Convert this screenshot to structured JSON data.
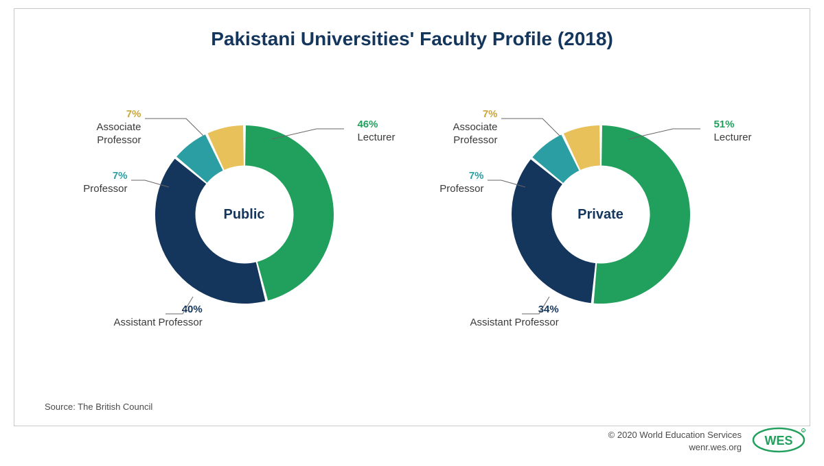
{
  "title": "Pakistani Universities' Faculty Profile (2018)",
  "title_color": "#14365c",
  "title_fontsize": 28,
  "background_color": "#ffffff",
  "divider_color": "#c9c9c9",
  "charts": [
    {
      "center_label": "Public",
      "type": "donut",
      "inner_radius_pct": 55,
      "gap_color": "#ffffff",
      "slices": [
        {
          "label": "Lecturer",
          "value": 46,
          "color": "#219f5c",
          "pct_text": "46%",
          "pct_color": "#219f5c"
        },
        {
          "label": "Assistant Professor",
          "value": 40,
          "color": "#14365c",
          "pct_text": "40%",
          "pct_color": "#14365c"
        },
        {
          "label": "Professor",
          "value": 7,
          "color": "#2b9ea3",
          "pct_text": "7%",
          "pct_color": "#2b9ea3"
        },
        {
          "label": "Associate Professor",
          "value": 7,
          "color": "#e8c15a",
          "pct_text": "7%",
          "pct_color": "#caa53b"
        }
      ]
    },
    {
      "center_label": "Private",
      "type": "donut",
      "inner_radius_pct": 55,
      "gap_color": "#ffffff",
      "slices": [
        {
          "label": "Lecturer",
          "value": 51,
          "color": "#219f5c",
          "pct_text": "51%",
          "pct_color": "#219f5c"
        },
        {
          "label": "Assistant Professor",
          "value": 34,
          "color": "#14365c",
          "pct_text": "34%",
          "pct_color": "#14365c"
        },
        {
          "label": "Professor",
          "value": 7,
          "color": "#2b9ea3",
          "pct_text": "7%",
          "pct_color": "#2b9ea3"
        },
        {
          "label": "Associate Professor",
          "value": 7,
          "color": "#e8c15a",
          "pct_text": "7%",
          "pct_color": "#caa53b"
        }
      ]
    }
  ],
  "source_text": "Source: The British Council",
  "credit_line1": "© 2020 World Education Services",
  "credit_line2": "wenr.wes.org",
  "logo_text": "WES",
  "logo_color": "#219f5c"
}
